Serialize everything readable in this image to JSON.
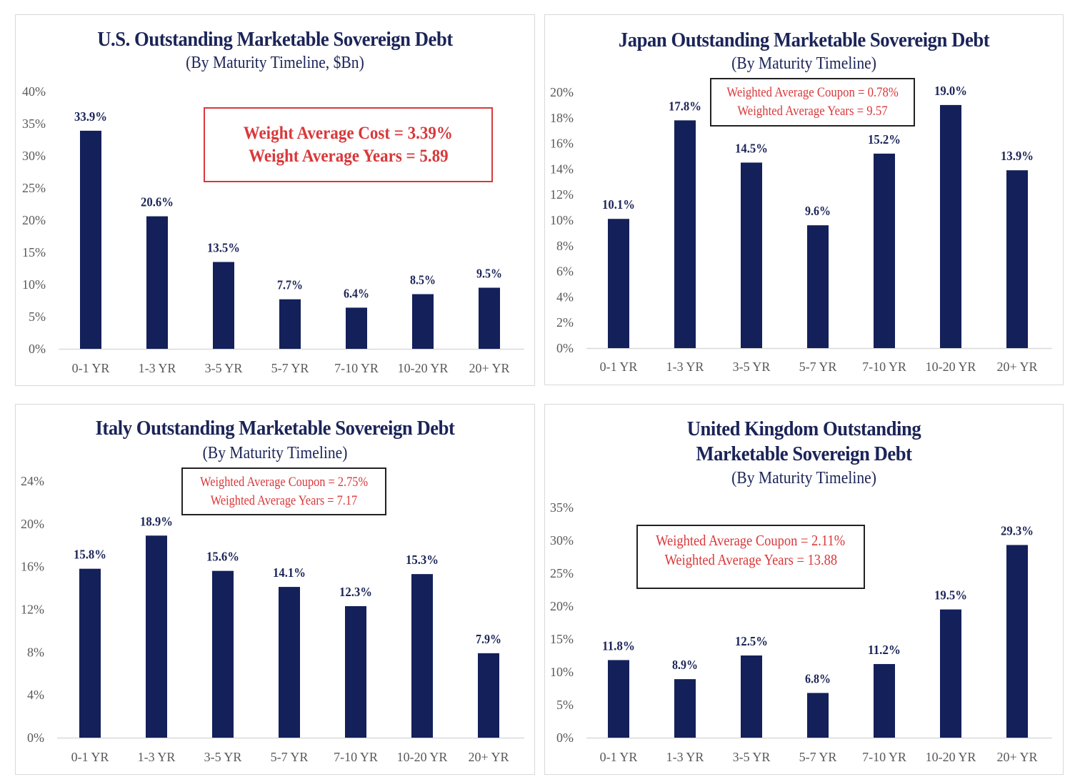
{
  "colors": {
    "bar": "#13205a",
    "title": "#1b2458",
    "annotation": "#d9383a",
    "axis_text": "#595959",
    "axis_line": "#d9d9d9"
  },
  "chart_data": [
    {
      "type": "bar",
      "title": "U.S. Outstanding Marketable Sovereign Debt",
      "title_lines": [
        "U.S. Outstanding Marketable Sovereign Debt"
      ],
      "subtitle": "(By Maturity Timeline, $Bn)",
      "annotation": [
        "Weight Average Cost = 3.39%",
        "Weight Average Years = 5.89"
      ],
      "annotation_border": "#d9383a",
      "categories": [
        "0-1 YR",
        "1-3 YR",
        "3-5 YR",
        "5-7 YR",
        "7-10 YR",
        "10-20 YR",
        "20+ YR"
      ],
      "values": [
        33.9,
        20.6,
        13.5,
        7.7,
        6.4,
        8.5,
        9.5
      ],
      "data_labels": [
        "33.9%",
        "20.6%",
        "13.5%",
        "7.7%",
        "6.4%",
        "8.5%",
        "9.5%"
      ],
      "yticks": [
        "0%",
        "5%",
        "10%",
        "15%",
        "20%",
        "25%",
        "30%",
        "35%",
        "40%"
      ],
      "ytick_values": [
        0,
        5,
        10,
        15,
        20,
        25,
        30,
        35,
        40
      ],
      "ylim": [
        0,
        40
      ],
      "xlabel": "",
      "ylabel": "",
      "grid": false,
      "legend": "none"
    },
    {
      "type": "bar",
      "title": "Japan Outstanding Marketable Sovereign Debt",
      "title_lines": [
        "Japan Outstanding Marketable Sovereign Debt"
      ],
      "subtitle": "(By Maturity Timeline)",
      "annotation": [
        "Weighted Average Coupon = 0.78%",
        "Weighted Average Years = 9.57"
      ],
      "annotation_border": "#000000",
      "categories": [
        "0-1 YR",
        "1-3 YR",
        "3-5 YR",
        "5-7 YR",
        "7-10 YR",
        "10-20 YR",
        "20+ YR"
      ],
      "values": [
        10.1,
        17.8,
        14.5,
        9.6,
        15.2,
        19.0,
        13.9
      ],
      "data_labels": [
        "10.1%",
        "17.8%",
        "14.5%",
        "9.6%",
        "15.2%",
        "19.0%",
        "13.9%"
      ],
      "yticks": [
        "0%",
        "2%",
        "4%",
        "6%",
        "8%",
        "10%",
        "12%",
        "14%",
        "16%",
        "18%",
        "20%"
      ],
      "ytick_values": [
        0,
        2,
        4,
        6,
        8,
        10,
        12,
        14,
        16,
        18,
        20
      ],
      "ylim": [
        0,
        20
      ],
      "xlabel": "",
      "ylabel": "",
      "grid": false,
      "legend": "none"
    },
    {
      "type": "bar",
      "title": "Italy Outstanding Marketable Sovereign Debt",
      "title_lines": [
        "Italy Outstanding Marketable Sovereign Debt"
      ],
      "subtitle": "(By Maturity Timeline)",
      "annotation": [
        "Weighted Average Coupon = 2.75%",
        "Weighted Average Years = 7.17"
      ],
      "annotation_border": "#000000",
      "categories": [
        "0-1 YR",
        "1-3 YR",
        "3-5 YR",
        "5-7 YR",
        "7-10 YR",
        "10-20 YR",
        "20+ YR"
      ],
      "values": [
        15.8,
        18.9,
        15.6,
        14.1,
        12.3,
        15.3,
        7.9
      ],
      "data_labels": [
        "15.8%",
        "18.9%",
        "15.6%",
        "14.1%",
        "12.3%",
        "15.3%",
        "7.9%"
      ],
      "yticks": [
        "0%",
        "4%",
        "8%",
        "12%",
        "16%",
        "20%",
        "24%"
      ],
      "ytick_values": [
        0,
        4,
        8,
        12,
        16,
        20,
        24
      ],
      "ylim": [
        0,
        24
      ],
      "xlabel": "",
      "ylabel": "",
      "grid": false,
      "legend": "none"
    },
    {
      "type": "bar",
      "title": "United Kingdom Outstanding Marketable Sovereign Debt",
      "title_lines": [
        "United Kingdom Outstanding",
        "Marketable Sovereign Debt"
      ],
      "subtitle": "(By Maturity Timeline)",
      "annotation": [
        "Weighted Average Coupon = 2.11%",
        "Weighted Average Years = 13.88"
      ],
      "annotation_border": "#000000",
      "categories": [
        "0-1 YR",
        "1-3 YR",
        "3-5 YR",
        "5-7 YR",
        "7-10 YR",
        "10-20 YR",
        "20+ YR"
      ],
      "values": [
        11.8,
        8.9,
        12.5,
        6.8,
        11.2,
        19.5,
        29.3
      ],
      "data_labels": [
        "11.8%",
        "8.9%",
        "12.5%",
        "6.8%",
        "11.2%",
        "19.5%",
        "29.3%"
      ],
      "yticks": [
        "0%",
        "5%",
        "10%",
        "15%",
        "20%",
        "25%",
        "30%",
        "35%"
      ],
      "ytick_values": [
        0,
        5,
        10,
        15,
        20,
        25,
        30,
        35
      ],
      "ylim": [
        0,
        35
      ],
      "xlabel": "",
      "ylabel": "",
      "grid": false,
      "legend": "none"
    }
  ]
}
